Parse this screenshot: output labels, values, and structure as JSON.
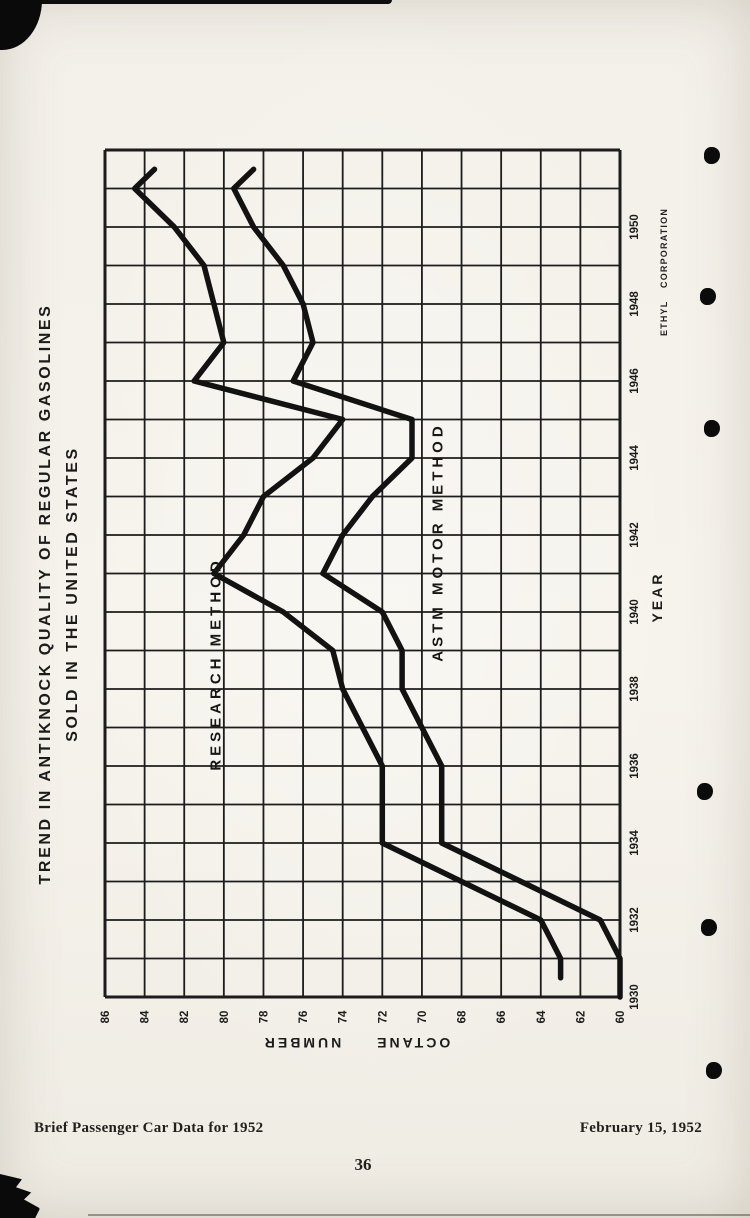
{
  "page": {
    "title_line1": "TREND IN ANTIKNOCK QUALITY OF REGULAR GASOLINES",
    "title_line2": "SOLD IN THE UNITED STATES",
    "credit": "ETHYL CORPORATION",
    "footer_left": "Brief Passenger Car Data for 1952",
    "footer_right": "February 15, 1952",
    "page_number": "36"
  },
  "colors": {
    "ink": "#1c1c1c",
    "curve_ink": "#121212",
    "paper": "#f5f2eb"
  },
  "chart_data": {
    "type": "line",
    "title": "TREND IN ANTIKNOCK QUALITY OF REGULAR GASOLINES SOLD IN THE UNITED STATES",
    "xlabel": "YEAR",
    "ylabel": "OCTANE NUMBER",
    "source": "ETHYL CORPORATION",
    "orientation": "chart rotated 90° CCW on page: YEAR axis runs vertically bottom(1930) to top(1952); OCTANE axis runs horizontally left(86) to right(60)",
    "grid": true,
    "year_axis": {
      "min": 1930,
      "max": 1952,
      "gridline_step": 1,
      "tick_labels": [
        "1930",
        "1932",
        "1934",
        "1936",
        "1938",
        "1940",
        "1942",
        "1944",
        "1946",
        "1948",
        "1950"
      ]
    },
    "octane_axis": {
      "min": 60,
      "max": 86,
      "gridline_step": 2,
      "tick_labels_left_to_right": [
        "86",
        "84",
        "82",
        "80",
        "78",
        "76",
        "74",
        "72",
        "70",
        "68",
        "66",
        "64",
        "62",
        "60"
      ]
    },
    "series": [
      {
        "name": "RESEARCH METHOD",
        "points_year_octane": [
          [
            1930.5,
            63
          ],
          [
            1931,
            63
          ],
          [
            1932,
            64
          ],
          [
            1933,
            68
          ],
          [
            1934,
            72
          ],
          [
            1935,
            72
          ],
          [
            1936,
            72
          ],
          [
            1937,
            73
          ],
          [
            1938,
            74
          ],
          [
            1939,
            74.5
          ],
          [
            1940,
            77
          ],
          [
            1941,
            80.5
          ],
          [
            1942,
            79
          ],
          [
            1943,
            78
          ],
          [
            1944,
            75.5
          ],
          [
            1945,
            74
          ],
          [
            1946,
            81.5
          ],
          [
            1947,
            80
          ],
          [
            1948,
            80.5
          ],
          [
            1949,
            81
          ],
          [
            1950,
            82.5
          ],
          [
            1951,
            84.5
          ],
          [
            1951.5,
            83.5
          ]
        ]
      },
      {
        "name": "ASTM MOTOR METHOD",
        "points_year_octane": [
          [
            1930,
            60
          ],
          [
            1931,
            60
          ],
          [
            1932,
            61
          ],
          [
            1933,
            65
          ],
          [
            1934,
            69
          ],
          [
            1935,
            69
          ],
          [
            1936,
            69
          ],
          [
            1937,
            70
          ],
          [
            1938,
            71
          ],
          [
            1939,
            71
          ],
          [
            1940,
            72
          ],
          [
            1941,
            75
          ],
          [
            1942,
            74
          ],
          [
            1943,
            72.5
          ],
          [
            1944,
            70.5
          ],
          [
            1945,
            70.5
          ],
          [
            1946,
            76.5
          ],
          [
            1947,
            75.5
          ],
          [
            1948,
            76
          ],
          [
            1949,
            77
          ],
          [
            1950,
            78.5
          ],
          [
            1951,
            79.5
          ],
          [
            1951.5,
            78.5
          ]
        ]
      }
    ]
  }
}
